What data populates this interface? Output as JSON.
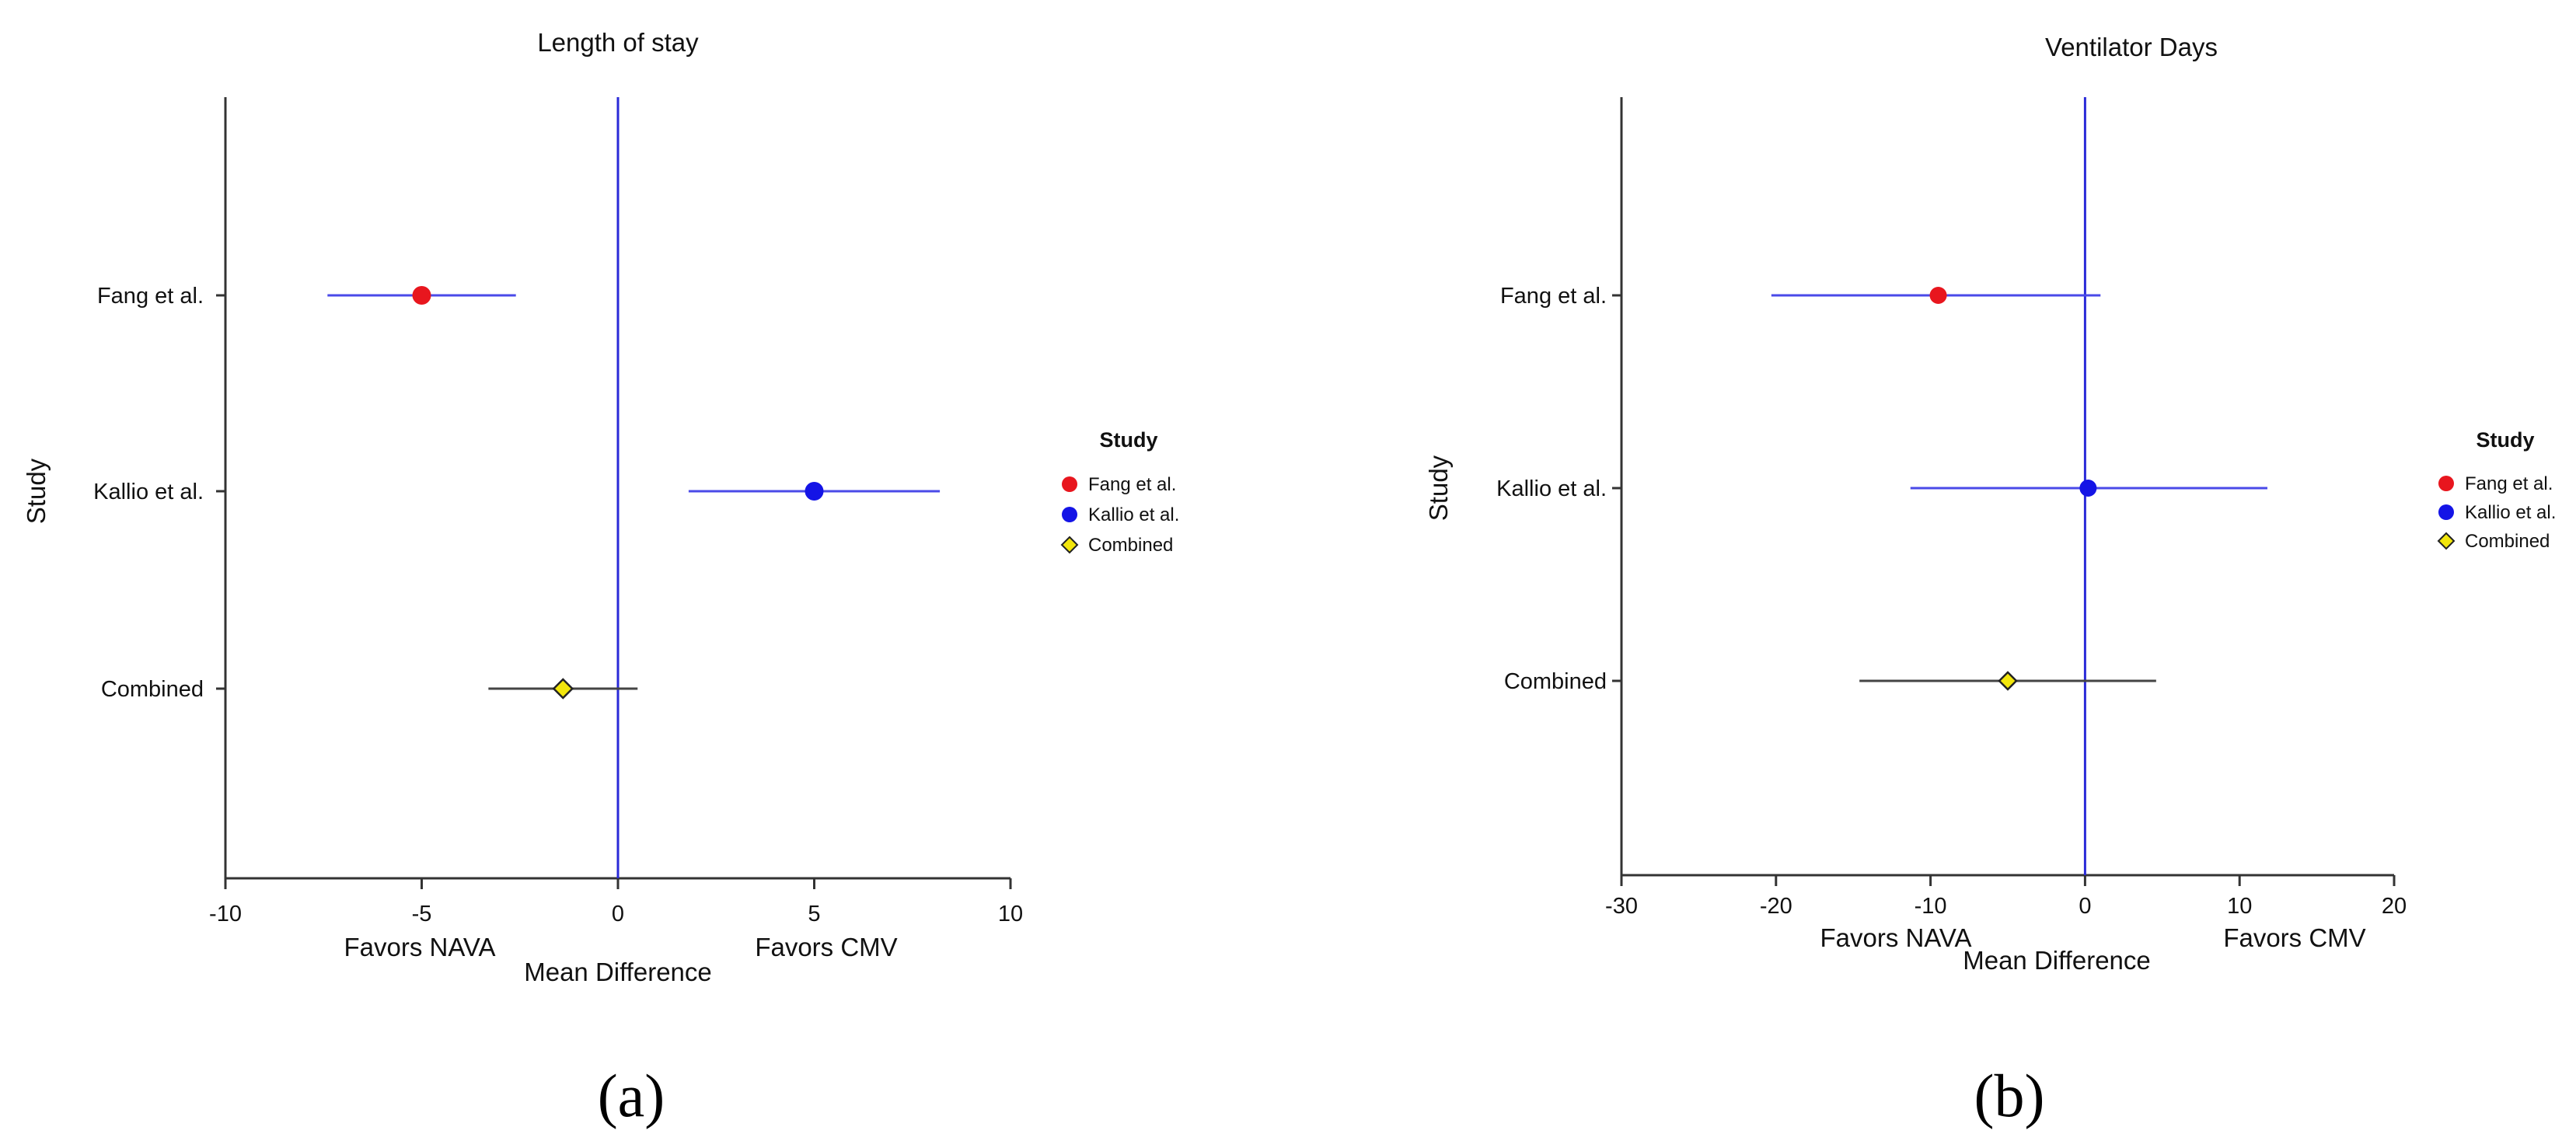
{
  "chart_data": [
    {
      "type": "forest",
      "title": "Length of stay",
      "xlabel": "Mean Difference",
      "ylabel": "Study",
      "x_ticks": [
        -10,
        -5,
        0,
        5,
        10
      ],
      "xlim": [
        -10,
        10
      ],
      "favors_left": "Favors NAVA",
      "favors_right": "Favors CMV",
      "reference_line": 0,
      "categories": [
        "Fang et al.",
        "Kallio et al.",
        "Combined"
      ],
      "points": [
        {
          "study": "Fang et al.",
          "estimate": -5.0,
          "ci_low": -7.4,
          "ci_high": -2.6,
          "color": "#e8161e",
          "marker": "circle",
          "line_color": "#4a4ae8"
        },
        {
          "study": "Kallio et al.",
          "estimate": 5.0,
          "ci_low": 1.8,
          "ci_high": 8.2,
          "color": "#1414e6",
          "marker": "circle",
          "line_color": "#4a4ae8"
        },
        {
          "study": "Combined",
          "estimate": -1.4,
          "ci_low": -3.3,
          "ci_high": 0.5,
          "color": "#f2e60c",
          "marker": "diamond",
          "line_color": "#444444"
        }
      ],
      "legend": {
        "title": "Study",
        "position": "right",
        "items": [
          {
            "label": "Fang et al.",
            "color": "#e8161e",
            "marker": "circle"
          },
          {
            "label": "Kallio et al.",
            "color": "#1414e6",
            "marker": "circle"
          },
          {
            "label": "Combined",
            "color": "#f2e60c",
            "marker": "diamond"
          }
        ]
      },
      "panel_label": "(a)"
    },
    {
      "type": "forest",
      "title": "Ventilator Days",
      "xlabel": "Mean Difference",
      "ylabel": "Study",
      "x_ticks": [
        -30,
        -20,
        -10,
        0,
        10,
        20
      ],
      "xlim": [
        -30,
        20
      ],
      "favors_left": "Favors NAVA",
      "favors_right": "Favors CMV",
      "reference_line": 0,
      "categories": [
        "Fang et al.",
        "Kallio et al.",
        "Combined"
      ],
      "points": [
        {
          "study": "Fang et al.",
          "estimate": -9.5,
          "ci_low": -20.3,
          "ci_high": 1.0,
          "color": "#e8161e",
          "marker": "circle",
          "line_color": "#4a4ae8"
        },
        {
          "study": "Kallio et al.",
          "estimate": 0.2,
          "ci_low": -11.3,
          "ci_high": 11.8,
          "color": "#1414e6",
          "marker": "circle",
          "line_color": "#4a4ae8"
        },
        {
          "study": "Combined",
          "estimate": -5.0,
          "ci_low": -14.6,
          "ci_high": 4.6,
          "color": "#f2e60c",
          "marker": "diamond",
          "line_color": "#444444"
        }
      ],
      "legend": {
        "title": "Study",
        "position": "right",
        "items": [
          {
            "label": "Fang et al.",
            "color": "#e8161e",
            "marker": "circle"
          },
          {
            "label": "Kallio et al.",
            "color": "#1414e6",
            "marker": "circle"
          },
          {
            "label": "Combined",
            "color": "#f2e60c",
            "marker": "diamond"
          }
        ]
      },
      "panel_label": "(b)"
    }
  ]
}
